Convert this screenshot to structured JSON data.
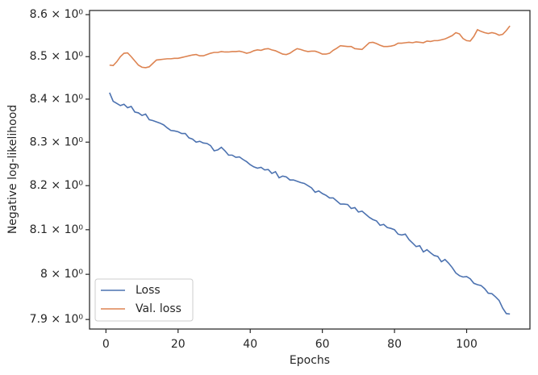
{
  "chart_data": {
    "type": "line",
    "xlabel": "Epochs",
    "ylabel": "Negative log-likelihood",
    "x": [
      1,
      2,
      3,
      4,
      5,
      6,
      7,
      8,
      9,
      10,
      11,
      12,
      13,
      14,
      15,
      16,
      17,
      18,
      19,
      20,
      21,
      22,
      23,
      24,
      25,
      26,
      27,
      28,
      29,
      30,
      31,
      32,
      33,
      34,
      35,
      36,
      37,
      38,
      39,
      40,
      41,
      42,
      43,
      44,
      45,
      46,
      47,
      48,
      49,
      50,
      51,
      52,
      53,
      54,
      55,
      56,
      57,
      58,
      59,
      60,
      61,
      62,
      63,
      64,
      65,
      66,
      67,
      68,
      69,
      70,
      71,
      72,
      73,
      74,
      75,
      76,
      77,
      78,
      79,
      80,
      81,
      82,
      83,
      84,
      85,
      86,
      87,
      88,
      89,
      90,
      91,
      92,
      93,
      94,
      95,
      96,
      97,
      98,
      99,
      100,
      101,
      102,
      103,
      104,
      105,
      106,
      107,
      108,
      109,
      110,
      111,
      112
    ],
    "series": [
      {
        "name": "Loss",
        "color": "#4c72b0",
        "values": [
          8.415,
          8.395,
          8.39,
          8.385,
          8.388,
          8.38,
          8.383,
          8.37,
          8.368,
          8.362,
          8.365,
          8.352,
          8.35,
          8.347,
          8.344,
          8.34,
          8.333,
          8.327,
          8.326,
          8.324,
          8.32,
          8.32,
          8.31,
          8.307,
          8.3,
          8.302,
          8.298,
          8.297,
          8.292,
          8.28,
          8.282,
          8.288,
          8.28,
          8.27,
          8.27,
          8.265,
          8.266,
          8.26,
          8.255,
          8.248,
          8.243,
          8.24,
          8.242,
          8.236,
          8.237,
          8.228,
          8.232,
          8.218,
          8.222,
          8.22,
          8.213,
          8.213,
          8.21,
          8.207,
          8.205,
          8.2,
          8.195,
          8.185,
          8.188,
          8.182,
          8.178,
          8.172,
          8.172,
          8.165,
          8.158,
          8.158,
          8.157,
          8.148,
          8.15,
          8.14,
          8.142,
          8.135,
          8.128,
          8.123,
          8.12,
          8.11,
          8.112,
          8.105,
          8.103,
          8.1,
          8.09,
          8.088,
          8.09,
          8.078,
          8.07,
          8.062,
          8.064,
          8.05,
          8.055,
          8.048,
          8.042,
          8.04,
          8.028,
          8.033,
          8.025,
          8.015,
          8.003,
          7.997,
          7.994,
          7.995,
          7.99,
          7.98,
          7.977,
          7.975,
          7.968,
          7.958,
          7.957,
          7.95,
          7.942,
          7.925,
          7.913,
          7.912
        ]
      },
      {
        "name": "Val. loss",
        "color": "#dd8452",
        "values": [
          8.48,
          8.479,
          8.488,
          8.5,
          8.508,
          8.509,
          8.5,
          8.49,
          8.48,
          8.475,
          8.474,
          8.476,
          8.484,
          8.492,
          8.493,
          8.494,
          8.495,
          8.495,
          8.496,
          8.496,
          8.498,
          8.5,
          8.502,
          8.504,
          8.505,
          8.502,
          8.502,
          8.505,
          8.508,
          8.51,
          8.51,
          8.512,
          8.511,
          8.511,
          8.512,
          8.512,
          8.513,
          8.511,
          8.508,
          8.51,
          8.514,
          8.516,
          8.515,
          8.518,
          8.519,
          8.516,
          8.514,
          8.51,
          8.506,
          8.505,
          8.508,
          8.514,
          8.519,
          8.517,
          8.514,
          8.512,
          8.513,
          8.513,
          8.51,
          8.506,
          8.506,
          8.508,
          8.515,
          8.52,
          8.526,
          8.525,
          8.524,
          8.524,
          8.519,
          8.518,
          8.517,
          8.525,
          8.533,
          8.534,
          8.531,
          8.527,
          8.524,
          8.524,
          8.525,
          8.527,
          8.532,
          8.532,
          8.533,
          8.534,
          8.533,
          8.535,
          8.534,
          8.533,
          8.537,
          8.536,
          8.538,
          8.538,
          8.54,
          8.542,
          8.546,
          8.55,
          8.557,
          8.554,
          8.543,
          8.538,
          8.537,
          8.548,
          8.564,
          8.56,
          8.557,
          8.555,
          8.557,
          8.555,
          8.551,
          8.553,
          8.562,
          8.573
        ]
      }
    ],
    "xlim": [
      -4.55,
      117.55
    ],
    "xticks": [
      0,
      20,
      40,
      60,
      80,
      100
    ],
    "ylim": [
      7.879,
      8.61
    ],
    "yscale": "log",
    "yticks": [
      {
        "value": 7.9,
        "label": "7.9 × 10⁰"
      },
      {
        "value": 8,
        "label": "8 × 10⁰"
      },
      {
        "value": 8.1,
        "label": "8.1 × 10⁰"
      },
      {
        "value": 8.2,
        "label": "8.2 × 10⁰"
      },
      {
        "value": 8.3,
        "label": "8.3 × 10⁰"
      },
      {
        "value": 8.4,
        "label": "8.4 × 10⁰"
      },
      {
        "value": 8.5,
        "label": "8.5 × 10⁰"
      },
      {
        "value": 8.6,
        "label": "8.6 × 10⁰"
      }
    ],
    "legend": "lower left",
    "grid": false
  }
}
